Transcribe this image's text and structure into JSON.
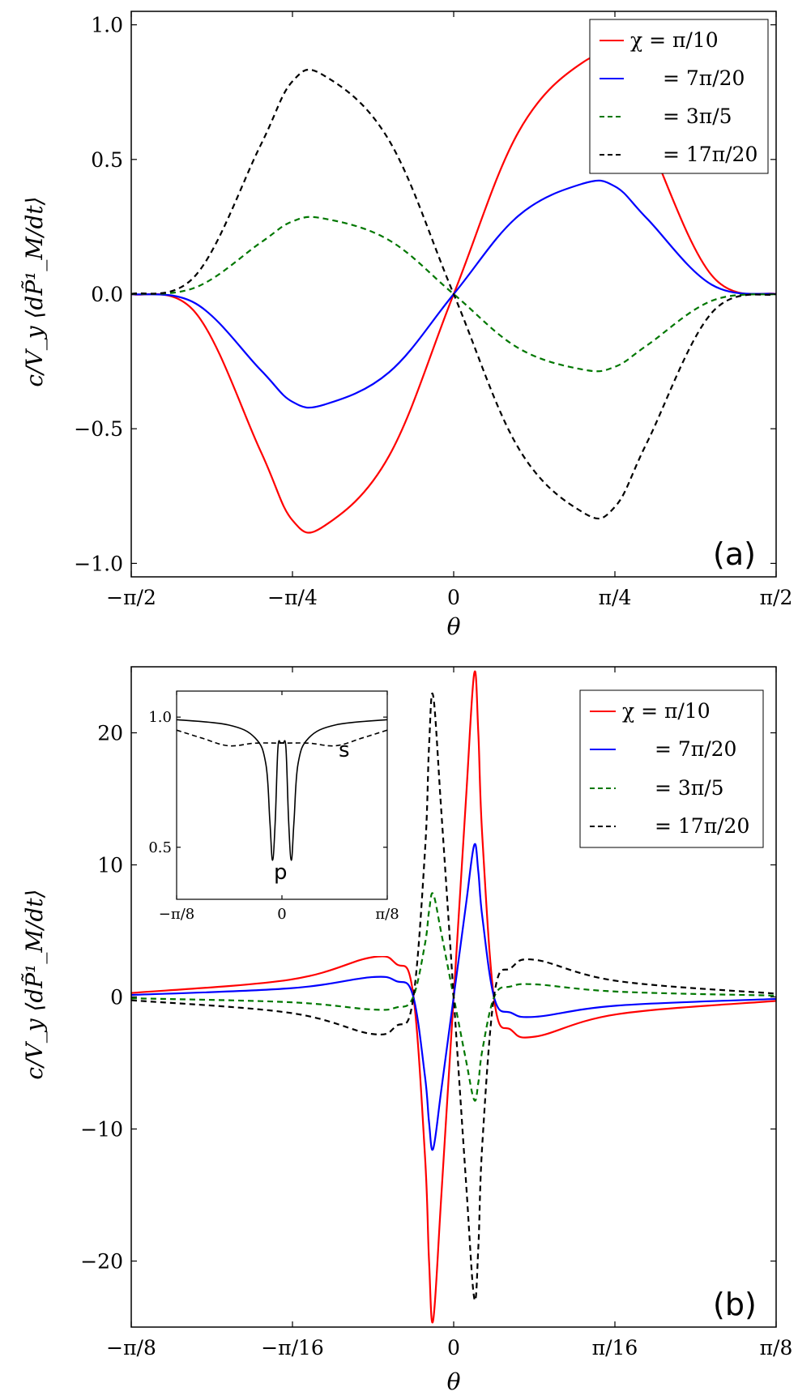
{
  "chart_data": [
    {
      "type": "line",
      "panel_label": "(a)",
      "xlabel": "θ",
      "ylabel": "c/V_y ⟨dP̃¹_M/dt⟩",
      "xlim": [
        -1.5708,
        1.5708
      ],
      "ylim": [
        -1.05,
        1.05
      ],
      "x_ticks": [
        {
          "value": -1.5708,
          "label": "−π/2"
        },
        {
          "value": -0.7854,
          "label": "−π/4"
        },
        {
          "value": 0,
          "label": "0"
        },
        {
          "value": 0.7854,
          "label": "π/4"
        },
        {
          "value": 1.5708,
          "label": "π/2"
        }
      ],
      "y_ticks": [
        {
          "value": 1.0,
          "label": "1.0"
        },
        {
          "value": 0.5,
          "label": "0.5"
        },
        {
          "value": 0.0,
          "label": "0.0"
        },
        {
          "value": -0.5,
          "label": "−0.5"
        },
        {
          "value": -1.0,
          "label": "−1.0"
        }
      ],
      "legend_location": "top-right",
      "series": [
        {
          "name": "χ = π/10",
          "legend": "χ = π/10",
          "color": "#ff0000",
          "style": "solid",
          "x": [
            -1.5708,
            -1.2566,
            -0.9425,
            -0.7854,
            -0.6283,
            -0.3142,
            0,
            0.3142,
            0.6283,
            0.7854,
            0.9425,
            1.2566,
            1.5708
          ],
          "y": [
            0,
            -0.07,
            -0.58,
            -0.84,
            -0.86,
            -0.6,
            0,
            0.6,
            0.86,
            0.84,
            0.58,
            0.07,
            0
          ]
        },
        {
          "name": "χ = 7π/20",
          "legend": "= 7π/20",
          "color": "#0000ff",
          "style": "solid",
          "x": [
            -1.5708,
            -1.2566,
            -0.9425,
            -0.7854,
            -0.6283,
            -0.3142,
            0,
            0.3142,
            0.6283,
            0.7854,
            0.9425,
            1.2566,
            1.5708
          ],
          "y": [
            0,
            -0.035,
            -0.28,
            -0.4,
            -0.41,
            -0.29,
            0,
            0.29,
            0.41,
            0.4,
            0.28,
            0.035,
            0
          ]
        },
        {
          "name": "χ = 3π/5",
          "legend": "= 3π/5",
          "color": "#007700",
          "style": "dashed",
          "x": [
            -1.5708,
            -1.2566,
            -0.9425,
            -0.7854,
            -0.6283,
            -0.3142,
            0,
            0.3142,
            0.6283,
            0.7854,
            0.9425,
            1.2566,
            1.5708
          ],
          "y": [
            0,
            0.025,
            0.19,
            0.27,
            0.28,
            0.2,
            0,
            -0.2,
            -0.28,
            -0.27,
            -0.19,
            -0.025,
            0
          ]
        },
        {
          "name": "χ = 17π/20",
          "legend": "= 17π/20",
          "color": "#000000",
          "style": "dashed",
          "x": [
            -1.5708,
            -1.2566,
            -0.9425,
            -0.7854,
            -0.6283,
            -0.3142,
            0,
            0.3142,
            0.6283,
            0.7854,
            0.9425,
            1.2566,
            1.5708
          ],
          "y": [
            0,
            0.07,
            0.55,
            0.79,
            0.81,
            0.57,
            0,
            -0.57,
            -0.81,
            -0.79,
            -0.55,
            -0.07,
            0
          ]
        }
      ]
    },
    {
      "type": "line",
      "panel_label": "(b)",
      "xlabel": "θ",
      "ylabel": "c/V_y ⟨dP̃¹_M/dt⟩",
      "xlim": [
        -0.3927,
        0.3927
      ],
      "ylim": [
        -25,
        25
      ],
      "x_ticks": [
        {
          "value": -0.3927,
          "label": "−π/8"
        },
        {
          "value": -0.19635,
          "label": "−π/16"
        },
        {
          "value": 0,
          "label": "0"
        },
        {
          "value": 0.19635,
          "label": "π/16"
        },
        {
          "value": 0.3927,
          "label": "π/8"
        }
      ],
      "y_ticks": [
        {
          "value": 20,
          "label": "20"
        },
        {
          "value": 10,
          "label": "10"
        },
        {
          "value": 0,
          "label": "0"
        },
        {
          "value": -10,
          "label": "−10"
        },
        {
          "value": -20,
          "label": "−20"
        }
      ],
      "legend_location": "top-right",
      "series": [
        {
          "name": "χ = π/10",
          "legend": "χ = π/10",
          "color": "#ff0000",
          "style": "solid",
          "x": [
            -0.3927,
            -0.2,
            -0.1,
            -0.07,
            -0.05,
            -0.035,
            -0.03,
            -0.025,
            -0.015,
            0,
            0.015,
            0.025,
            0.03,
            0.035,
            0.05,
            0.07,
            0.1,
            0.2,
            0.3927
          ],
          "y": [
            0.3,
            1.3,
            3.0,
            2.5,
            0.5,
            -12,
            -20,
            -24.5,
            -15,
            0,
            15,
            24.5,
            20,
            12,
            -0.5,
            -2.5,
            -3.0,
            -1.3,
            -0.3
          ]
        },
        {
          "name": "χ = 7π/20",
          "legend": "= 7π/20",
          "color": "#0000ff",
          "style": "solid",
          "x": [
            -0.3927,
            -0.2,
            -0.1,
            -0.07,
            -0.05,
            -0.035,
            -0.03,
            -0.025,
            -0.015,
            0,
            0.015,
            0.025,
            0.03,
            0.035,
            0.05,
            0.07,
            0.1,
            0.2,
            0.3927
          ],
          "y": [
            0.15,
            0.65,
            1.5,
            1.2,
            0.2,
            -6,
            -9.5,
            -11.5,
            -7,
            0,
            7,
            11.5,
            9.5,
            6,
            -0.2,
            -1.2,
            -1.5,
            -0.65,
            -0.15
          ]
        },
        {
          "name": "χ = 3π/5",
          "legend": "= 3π/5",
          "color": "#007700",
          "style": "dashed",
          "x": [
            -0.3927,
            -0.2,
            -0.1,
            -0.07,
            -0.05,
            -0.035,
            -0.03,
            -0.025,
            -0.015,
            0,
            0.015,
            0.025,
            0.03,
            0.035,
            0.05,
            0.07,
            0.1,
            0.2,
            0.3927
          ],
          "y": [
            -0.1,
            -0.4,
            -0.95,
            -0.8,
            -0.1,
            4,
            6.5,
            7.8,
            4.8,
            0,
            -4.8,
            -7.8,
            -6.5,
            -4,
            0.1,
            0.8,
            0.95,
            0.4,
            0.1
          ]
        },
        {
          "name": "χ = 17π/20",
          "legend": "= 17π/20",
          "color": "#000000",
          "style": "dashed",
          "x": [
            -0.3927,
            -0.2,
            -0.1,
            -0.07,
            -0.05,
            -0.035,
            -0.03,
            -0.025,
            -0.015,
            0,
            0.015,
            0.025,
            0.03,
            0.035,
            0.05,
            0.07,
            0.1,
            0.2,
            0.3927
          ],
          "y": [
            -0.25,
            -1.2,
            -2.8,
            -2.2,
            -0.4,
            11,
            19,
            22.8,
            14,
            0,
            -14,
            -22.8,
            -19,
            -11,
            0.4,
            2.2,
            2.8,
            1.2,
            0.25
          ]
        }
      ],
      "inset": {
        "xlim": [
          -0.3927,
          0.3927
        ],
        "ylim": [
          0.3,
          1.1
        ],
        "x_ticks": [
          {
            "value": -0.3927,
            "label": "−π/8"
          },
          {
            "value": 0,
            "label": "0"
          },
          {
            "value": 0.3927,
            "label": "π/8"
          }
        ],
        "y_ticks": [
          {
            "value": 1.0,
            "label": "1.0"
          },
          {
            "value": 0.5,
            "label": "0.5"
          }
        ],
        "annotations": [
          "s",
          "p"
        ],
        "series": [
          {
            "name": "p",
            "color": "#000000",
            "style": "solid",
            "x": [
              -0.3927,
              -0.2,
              -0.1,
              -0.06,
              -0.045,
              -0.035,
              -0.025,
              -0.015,
              -0.005,
              0,
              0.005,
              0.015,
              0.025,
              0.035,
              0.045,
              0.06,
              0.1,
              0.2,
              0.3927
            ],
            "y": [
              0.99,
              0.97,
              0.92,
              0.82,
              0.6,
              0.45,
              0.6,
              0.88,
              0.9,
              0.9,
              0.9,
              0.88,
              0.6,
              0.45,
              0.6,
              0.82,
              0.92,
              0.97,
              0.99
            ]
          },
          {
            "name": "s",
            "color": "#000000",
            "style": "dashed",
            "x": [
              -0.3927,
              -0.3,
              -0.2,
              -0.1,
              0,
              0.1,
              0.2,
              0.3,
              0.3927
            ],
            "y": [
              0.95,
              0.92,
              0.89,
              0.9,
              0.9,
              0.9,
              0.89,
              0.92,
              0.95
            ]
          }
        ]
      }
    }
  ]
}
